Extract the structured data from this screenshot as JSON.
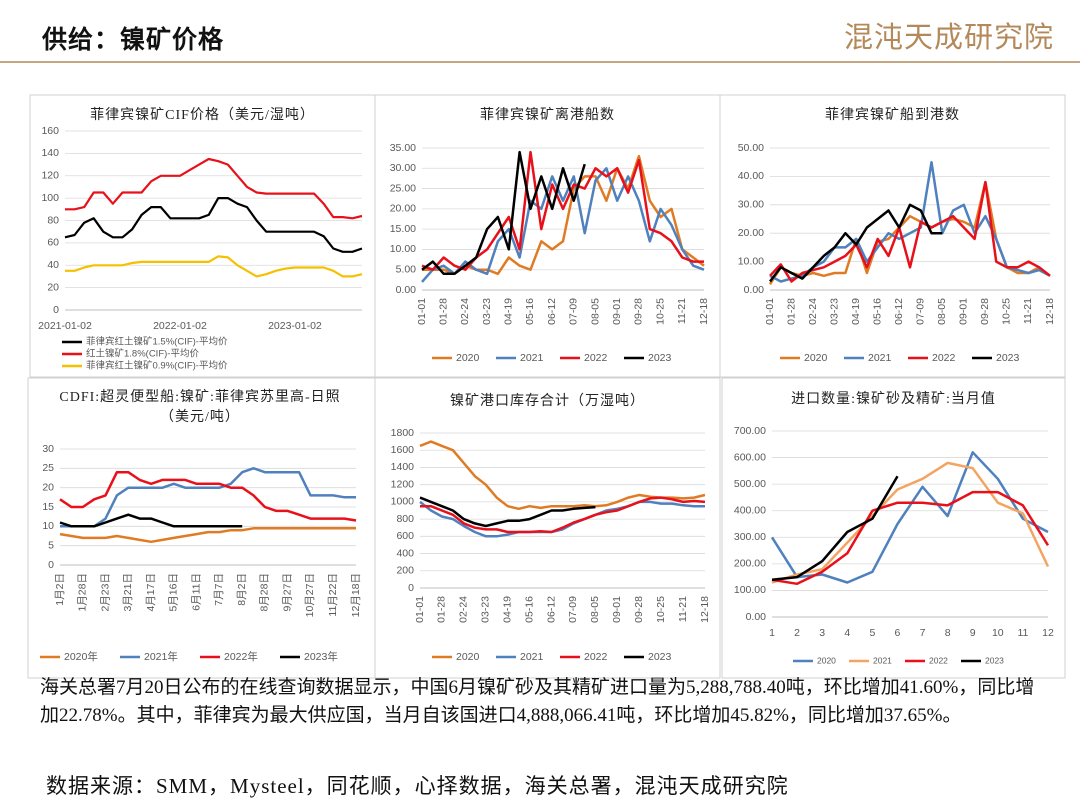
{
  "header": {
    "title": "供给：镍矿价格",
    "logo": "混沌天成研究院"
  },
  "chart_data": [
    {
      "type": "line",
      "title": "菲律宾镍矿CIF价格（美元/湿吨）",
      "categories": [
        "2021-01-02",
        null,
        null,
        null,
        null,
        null,
        null,
        null,
        null,
        null,
        null,
        null,
        "2022-01-02",
        null,
        null,
        null,
        null,
        null,
        null,
        null,
        null,
        null,
        null,
        null,
        "2023-01-02",
        null,
        null,
        null,
        null,
        null,
        null,
        null
      ],
      "ylim": [
        0,
        160
      ],
      "yticks": [
        0,
        20,
        40,
        60,
        80,
        100,
        120,
        140,
        160
      ],
      "grid": true,
      "series": [
        {
          "name": "菲律宾红土镍矿1.5%(CIF)-平均价",
          "color": "#000000",
          "values": [
            65,
            67,
            78,
            82,
            70,
            65,
            65,
            72,
            85,
            92,
            92,
            82,
            82,
            82,
            82,
            85,
            100,
            100,
            95,
            92,
            80,
            70,
            70,
            70,
            70,
            70,
            70,
            66,
            55,
            52,
            52,
            55
          ]
        },
        {
          "name": "红土镍矿1.8%(CIF)-平均价",
          "color": "#e8101a",
          "values": [
            90,
            90,
            92,
            105,
            105,
            95,
            105,
            105,
            105,
            115,
            120,
            120,
            120,
            125,
            130,
            135,
            133,
            130,
            120,
            110,
            105,
            104,
            104,
            104,
            104,
            104,
            104,
            95,
            83,
            83,
            82,
            84
          ]
        },
        {
          "name": "菲律宾红土镍矿0.9%(CIF)-平均价",
          "color": "#f5c000",
          "values": [
            35,
            35,
            38,
            40,
            40,
            40,
            40,
            42,
            43,
            43,
            43,
            43,
            43,
            43,
            43,
            43,
            48,
            47,
            40,
            35,
            30,
            32,
            35,
            37,
            38,
            38,
            38,
            38,
            35,
            30,
            30,
            32
          ]
        }
      ]
    },
    {
      "type": "line",
      "title": "菲律宾镍矿离港船数",
      "categories": [
        "01-01",
        null,
        "01-28",
        null,
        "02-24",
        null,
        "03-23",
        null,
        "04-19",
        null,
        "05-16",
        null,
        "06-12",
        null,
        "07-09",
        null,
        "08-05",
        null,
        "09-01",
        null,
        "09-28",
        null,
        "10-25",
        null,
        "11-21",
        null,
        "12-18"
      ],
      "ylim": [
        0,
        35
      ],
      "yticks": [
        {
          "value": 0,
          "label": "0.00"
        },
        {
          "value": 5,
          "label": "5.00"
        },
        {
          "value": 10,
          "label": "10.00"
        },
        {
          "value": 15,
          "label": "15.00"
        },
        {
          "value": 20,
          "label": "20.00"
        },
        {
          "value": 25,
          "label": "25.00"
        },
        {
          "value": 30,
          "label": "30.00"
        },
        {
          "value": 35,
          "label": "35.00"
        }
      ],
      "grid": true,
      "series": [
        {
          "name": "2020",
          "color": "#e07b24",
          "values": [
            5,
            5,
            5,
            4,
            6,
            5,
            5,
            4,
            8,
            6,
            5,
            12,
            10,
            12,
            25,
            28,
            28,
            22,
            30,
            25,
            33,
            22,
            18,
            20,
            10,
            8,
            6
          ]
        },
        {
          "name": "2021",
          "color": "#4e81bd",
          "values": [
            2,
            5,
            6,
            4,
            7,
            5,
            4,
            12,
            15,
            8,
            22,
            20,
            28,
            22,
            28,
            14,
            27,
            30,
            22,
            28,
            22,
            12,
            20,
            16,
            10,
            6,
            5
          ]
        },
        {
          "name": "2022",
          "color": "#e8101a",
          "values": [
            6,
            5,
            8,
            6,
            5,
            8,
            10,
            14,
            18,
            10,
            34,
            15,
            26,
            20,
            26,
            25,
            30,
            28,
            30,
            24,
            32,
            15,
            14,
            12,
            8,
            7,
            7
          ]
        },
        {
          "name": "2023",
          "color": "#000000",
          "values": [
            5,
            7,
            4,
            4,
            6,
            8,
            15,
            18,
            10,
            34,
            20,
            28,
            20,
            30,
            22,
            31,
            null,
            null,
            null,
            null,
            null,
            null,
            null,
            null,
            null,
            null,
            null
          ]
        }
      ]
    },
    {
      "type": "line",
      "title": "菲律宾镍矿船到港数",
      "categories": [
        "01-01",
        null,
        "01-28",
        null,
        "02-24",
        null,
        "03-23",
        null,
        "04-19",
        null,
        "05-16",
        null,
        "06-12",
        null,
        "07-09",
        null,
        "08-05",
        null,
        "09-01",
        null,
        "09-28",
        null,
        "10-25",
        null,
        "11-21",
        null,
        "12-18"
      ],
      "ylim": [
        0,
        50
      ],
      "yticks": [
        {
          "value": 0,
          "label": "0.00"
        },
        {
          "value": 10,
          "label": "10.00"
        },
        {
          "value": 20,
          "label": "20.00"
        },
        {
          "value": 30,
          "label": "30.00"
        },
        {
          "value": 40,
          "label": "40.00"
        },
        {
          "value": 50,
          "label": "50.00"
        }
      ],
      "grid": true,
      "series": [
        {
          "name": "2020",
          "color": "#e07b24",
          "values": [
            2,
            8,
            6,
            5,
            6,
            5,
            6,
            6,
            18,
            6,
            17,
            18,
            22,
            26,
            24,
            22,
            24,
            25,
            24,
            22,
            38,
            18,
            8,
            6,
            6,
            8,
            5
          ]
        },
        {
          "name": "2021",
          "color": "#4e81bd",
          "values": [
            5,
            3,
            4,
            5,
            8,
            10,
            15,
            15,
            18,
            10,
            15,
            20,
            18,
            20,
            22,
            45,
            20,
            28,
            30,
            20,
            26,
            18,
            8,
            7,
            6,
            7,
            5
          ]
        },
        {
          "name": "2022",
          "color": "#e8101a",
          "values": [
            5,
            9,
            3,
            6,
            7,
            8,
            10,
            12,
            16,
            8,
            18,
            12,
            22,
            8,
            24,
            22,
            24,
            26,
            22,
            18,
            38,
            10,
            8,
            8,
            10,
            8,
            5
          ]
        },
        {
          "name": "2023",
          "color": "#000000",
          "values": [
            3,
            8,
            6,
            4,
            8,
            12,
            15,
            20,
            16,
            22,
            25,
            28,
            22,
            30,
            28,
            20,
            20,
            null,
            null,
            null,
            null,
            null,
            null,
            null,
            null,
            null,
            null
          ]
        }
      ]
    },
    {
      "type": "line",
      "title": "CDFI:超灵便型船:镍矿:菲律宾苏里高-日照（美元/吨）",
      "categories": [
        "1月2日",
        null,
        "1月28日",
        null,
        "2月23日",
        null,
        "3月21日",
        null,
        "4月17日",
        null,
        "5月16日",
        null,
        "6月11日",
        null,
        "7月7日",
        null,
        "8月2日",
        null,
        "8月28日",
        null,
        "9月27日",
        null,
        "10月27日",
        null,
        "11月22日",
        null,
        "12月18日"
      ],
      "ylim": [
        0,
        30
      ],
      "yticks": [
        0,
        5,
        10,
        15,
        20,
        25,
        30
      ],
      "grid": true,
      "series": [
        {
          "name": "2020年",
          "color": "#e07b24",
          "values": [
            8,
            7.5,
            7,
            7,
            7,
            7.5,
            7,
            6.5,
            6,
            6.5,
            7,
            7.5,
            8,
            8.5,
            8.5,
            9,
            9,
            9.5,
            9.5,
            9.5,
            9.5,
            9.5,
            9.5,
            9.5,
            9.5,
            9.5,
            9.5
          ]
        },
        {
          "name": "2021年",
          "color": "#4e81bd",
          "values": [
            10,
            10,
            10,
            10,
            12,
            18,
            20,
            20,
            20,
            20,
            21,
            20,
            20,
            20,
            20,
            21,
            24,
            25,
            24,
            24,
            24,
            24,
            18,
            18,
            18,
            17.5,
            17.5
          ]
        },
        {
          "name": "2022年",
          "color": "#e8101a",
          "values": [
            17,
            15,
            15,
            17,
            18,
            24,
            24,
            22,
            21,
            22,
            22,
            22,
            21,
            21,
            21,
            20,
            20,
            18,
            15,
            14,
            14,
            13,
            12,
            12,
            12,
            12,
            11.5
          ]
        },
        {
          "name": "2023年",
          "color": "#000000",
          "values": [
            11,
            10,
            10,
            10,
            11,
            12,
            13,
            12,
            12,
            11,
            10,
            10,
            10,
            10,
            10,
            10,
            10,
            null,
            null,
            null,
            null,
            null,
            null,
            null,
            null,
            null,
            null
          ]
        }
      ]
    },
    {
      "type": "line",
      "title": "镍矿港口库存合计（万湿吨）",
      "categories": [
        "01-01",
        null,
        "01-28",
        null,
        "02-24",
        null,
        "03-23",
        null,
        "04-19",
        null,
        "05-16",
        null,
        "06-12",
        null,
        "07-09",
        null,
        "08-05",
        null,
        "09-01",
        null,
        "09-28",
        null,
        "10-25",
        null,
        "11-21",
        null,
        "12-18"
      ],
      "ylim": [
        0,
        1800
      ],
      "yticks": [
        0,
        200,
        400,
        600,
        800,
        1000,
        1200,
        1400,
        1600,
        1800
      ],
      "grid": true,
      "series": [
        {
          "name": "2020",
          "color": "#e07b24",
          "values": [
            1650,
            1700,
            1650,
            1600,
            1450,
            1300,
            1200,
            1050,
            950,
            920,
            950,
            930,
            950,
            950,
            950,
            960,
            950,
            960,
            1000,
            1050,
            1080,
            1060,
            1050,
            1050,
            1040,
            1050,
            1080
          ]
        },
        {
          "name": "2021",
          "color": "#4e81bd",
          "values": [
            1000,
            900,
            830,
            800,
            720,
            650,
            600,
            600,
            620,
            650,
            650,
            650,
            650,
            680,
            750,
            800,
            850,
            900,
            920,
            950,
            1000,
            1000,
            980,
            980,
            960,
            950,
            950
          ]
        },
        {
          "name": "2022",
          "color": "#e8101a",
          "values": [
            950,
            950,
            900,
            850,
            750,
            700,
            680,
            680,
            650,
            650,
            650,
            660,
            650,
            700,
            760,
            800,
            850,
            880,
            900,
            950,
            1000,
            1040,
            1050,
            1030,
            1000,
            1010,
            1000
          ]
        },
        {
          "name": "2023",
          "color": "#000000",
          "values": [
            1050,
            1000,
            950,
            900,
            800,
            750,
            720,
            750,
            780,
            780,
            800,
            850,
            900,
            900,
            920,
            930,
            940,
            null,
            null,
            null,
            null,
            null,
            null,
            null,
            null,
            null,
            null
          ]
        }
      ]
    },
    {
      "type": "line",
      "title": "进口数量:镍矿砂及精矿:当月值",
      "categories": [
        "1",
        "2",
        "3",
        "4",
        "5",
        "6",
        "7",
        "8",
        "9",
        "10",
        "11",
        "12"
      ],
      "ylim": [
        0,
        700
      ],
      "yticks": [
        {
          "value": 0,
          "label": "0.00"
        },
        {
          "value": 100,
          "label": "100.00"
        },
        {
          "value": 200,
          "label": "200.00"
        },
        {
          "value": 300,
          "label": "300.00"
        },
        {
          "value": 400,
          "label": "400.00"
        },
        {
          "value": 500,
          "label": "500.00"
        },
        {
          "value": 600,
          "label": "600.00"
        },
        {
          "value": 700,
          "label": "700.00"
        }
      ],
      "grid": true,
      "series": [
        {
          "name": "2020",
          "color": "#4e81bd",
          "values": [
            300,
            150,
            160,
            130,
            170,
            350,
            490,
            380,
            620,
            520,
            370,
            320
          ]
        },
        {
          "name": "2021",
          "color": "#f4a460",
          "values": [
            130,
            160,
            180,
            280,
            380,
            480,
            520,
            580,
            560,
            430,
            390,
            190
          ]
        },
        {
          "name": "2022",
          "color": "#e8101a",
          "values": [
            140,
            125,
            170,
            240,
            400,
            430,
            430,
            420,
            470,
            470,
            420,
            270
          ]
        },
        {
          "name": "2023",
          "color": "#000000",
          "values": [
            140,
            150,
            210,
            320,
            370,
            530,
            null,
            null,
            null,
            null,
            null,
            null
          ]
        }
      ]
    }
  ],
  "paragraph": "海关总署7月20日公布的在线查询数据显示，中国6月镍矿砂及其精矿进口量为5,288,788.40吨，环比增加41.60%，同比增加22.78%。其中，菲律宾为最大供应国，当月自该国进口4,888,066.41吨，环比增加45.82%，同比增加37.65%。",
  "source": "数据来源：SMM，Mysteel，同花顺，心择数据，海关总署，混沌天成研究院"
}
